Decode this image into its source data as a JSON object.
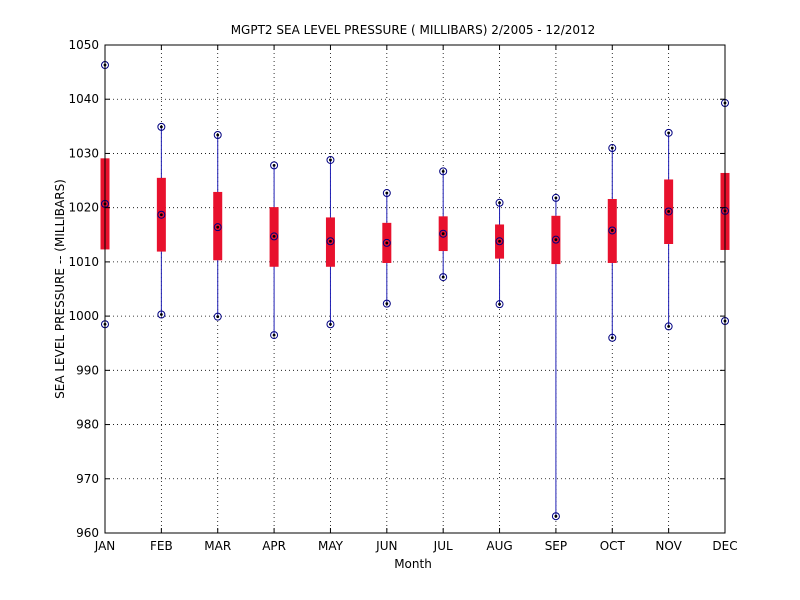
{
  "chart_data": {
    "type": "box",
    "title": "MGPT2  SEA LEVEL PRESSURE ( MILLIBARS) 2/2005 - 12/2012",
    "xlabel": "Month",
    "ylabel": "SEA LEVEL PRESSURE -- (MILLIBARS)",
    "ylim": [
      960,
      1050
    ],
    "yticks": [
      960,
      970,
      980,
      990,
      1000,
      1010,
      1020,
      1030,
      1040,
      1050
    ],
    "grid": true,
    "categories": [
      "JAN",
      "FEB",
      "MAR",
      "APR",
      "MAY",
      "JUN",
      "JUL",
      "AUG",
      "SEP",
      "OCT",
      "NOV",
      "DEC"
    ],
    "min": [
      998.5,
      1000.3,
      999.9,
      996.5,
      998.5,
      1002.3,
      1007.2,
      1002.2,
      963.1,
      996.0,
      998.1,
      999.1
    ],
    "q1": [
      1012.3,
      1011.9,
      1010.3,
      1009.1,
      1009.1,
      1009.8,
      1012.0,
      1010.6,
      1009.6,
      1009.8,
      1013.3,
      1012.2
    ],
    "mean": [
      1020.7,
      1018.7,
      1016.4,
      1014.7,
      1013.8,
      1013.5,
      1015.2,
      1013.8,
      1014.1,
      1015.8,
      1019.3,
      1019.4
    ],
    "q3": [
      1029.1,
      1025.5,
      1022.9,
      1020.1,
      1018.2,
      1017.2,
      1018.4,
      1016.9,
      1018.5,
      1021.6,
      1025.2,
      1026.4
    ],
    "max": [
      1046.3,
      1034.9,
      1033.4,
      1027.8,
      1028.8,
      1022.7,
      1026.7,
      1020.9,
      1021.8,
      1031.0,
      1033.8,
      1039.3
    ],
    "colors": {
      "whisker": "#1f1fb4",
      "box": "#e8112d",
      "marker": "#000080",
      "axis": "#000000"
    }
  }
}
